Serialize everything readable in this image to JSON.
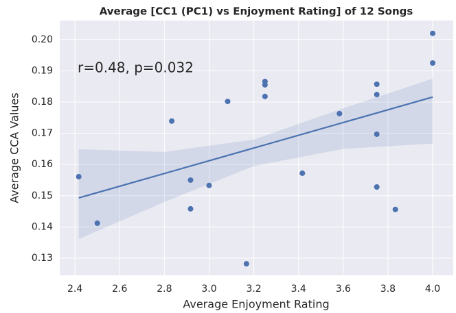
{
  "chart_data": {
    "type": "scatter",
    "title": "Average [CC1 (PC1) vs Enjoyment Rating] of 12 Songs",
    "x_label": "Average Enjoyment Rating",
    "y_label": "Average CCA Values",
    "annotation": "r=0.48, p=0.032",
    "color": "#4c72b0",
    "grid": true,
    "x": [
      2.417,
      2.5,
      2.833,
      2.917,
      2.917,
      3.0,
      3.083,
      3.167,
      3.25,
      3.25,
      3.25,
      3.417,
      3.583,
      3.75,
      3.75,
      3.75,
      3.75,
      3.833,
      4.0,
      4.0
    ],
    "values": [
      0.1561,
      0.1412,
      0.1739,
      0.155,
      0.1458,
      0.1533,
      0.1802,
      0.1282,
      0.1866,
      0.1855,
      0.1818,
      0.1572,
      0.1763,
      0.1857,
      0.1824,
      0.1697,
      0.1528,
      0.1456,
      0.202,
      0.1925
    ],
    "fit": {
      "x": [
        2.417,
        4.0
      ],
      "values": [
        0.1493,
        0.1816
      ]
    },
    "band": {
      "x": [
        2.417,
        2.8,
        3.2,
        3.6,
        4.0
      ],
      "lower": [
        0.1361,
        0.148,
        0.1595,
        0.165,
        0.1667
      ],
      "upper": [
        0.1649,
        0.164,
        0.168,
        0.178,
        0.1875
      ]
    },
    "xlim": [
      2.332,
      4.092
    ],
    "ylim": [
      0.1245,
      0.2061
    ],
    "xticks": [
      2.4,
      2.6,
      2.8,
      {
        "value": 3.0,
        "label": "3.0"
      },
      3.2,
      3.4,
      3.6,
      3.8,
      {
        "value": 4.0,
        "label": "4.0"
      }
    ],
    "yticks": [
      0.13,
      0.14,
      0.15,
      0.16,
      0.17,
      0.18,
      0.19,
      {
        "value": 0.2,
        "label": "0.20"
      }
    ]
  }
}
